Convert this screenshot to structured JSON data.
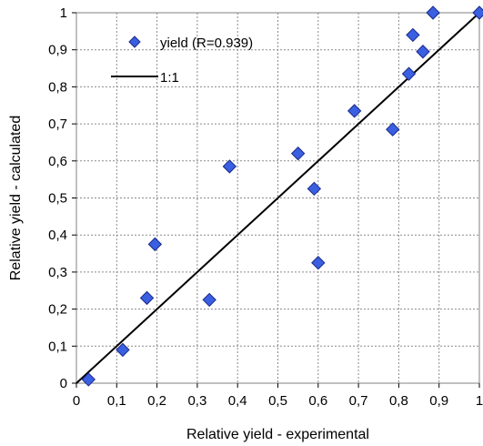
{
  "chart_data": {
    "type": "scatter",
    "xlabel": "Relative yield - experimental",
    "ylabel": "Relative yield - calculated",
    "xlim": [
      0,
      1
    ],
    "ylim": [
      0,
      1
    ],
    "xticks": [
      "0",
      "0,1",
      "0,2",
      "0,3",
      "0,4",
      "0,5",
      "0,6",
      "0,7",
      "0,8",
      "0,9",
      "1"
    ],
    "yticks": [
      "0",
      "0,1",
      "0,2",
      "0,3",
      "0,4",
      "0,5",
      "0,6",
      "0,7",
      "0,8",
      "0,9",
      "1"
    ],
    "grid": true,
    "legend_position": "top-left",
    "series": [
      {
        "name": "yield (R=0.939)",
        "marker": "diamond",
        "color": "#3A5FE0",
        "points": [
          {
            "x": 0.03,
            "y": 0.01
          },
          {
            "x": 0.115,
            "y": 0.09
          },
          {
            "x": 0.175,
            "y": 0.23
          },
          {
            "x": 0.195,
            "y": 0.375
          },
          {
            "x": 0.33,
            "y": 0.225
          },
          {
            "x": 0.38,
            "y": 0.585
          },
          {
            "x": 0.55,
            "y": 0.62
          },
          {
            "x": 0.59,
            "y": 0.525
          },
          {
            "x": 0.6,
            "y": 0.325
          },
          {
            "x": 0.69,
            "y": 0.735
          },
          {
            "x": 0.785,
            "y": 0.685
          },
          {
            "x": 0.825,
            "y": 0.835
          },
          {
            "x": 0.835,
            "y": 0.94
          },
          {
            "x": 0.86,
            "y": 0.895
          },
          {
            "x": 0.885,
            "y": 1.0
          },
          {
            "x": 1.0,
            "y": 1.0
          }
        ]
      },
      {
        "name": "1:1",
        "line": true,
        "color": "#000000",
        "points": [
          {
            "x": 0,
            "y": 0
          },
          {
            "x": 1,
            "y": 1
          }
        ]
      }
    ]
  }
}
